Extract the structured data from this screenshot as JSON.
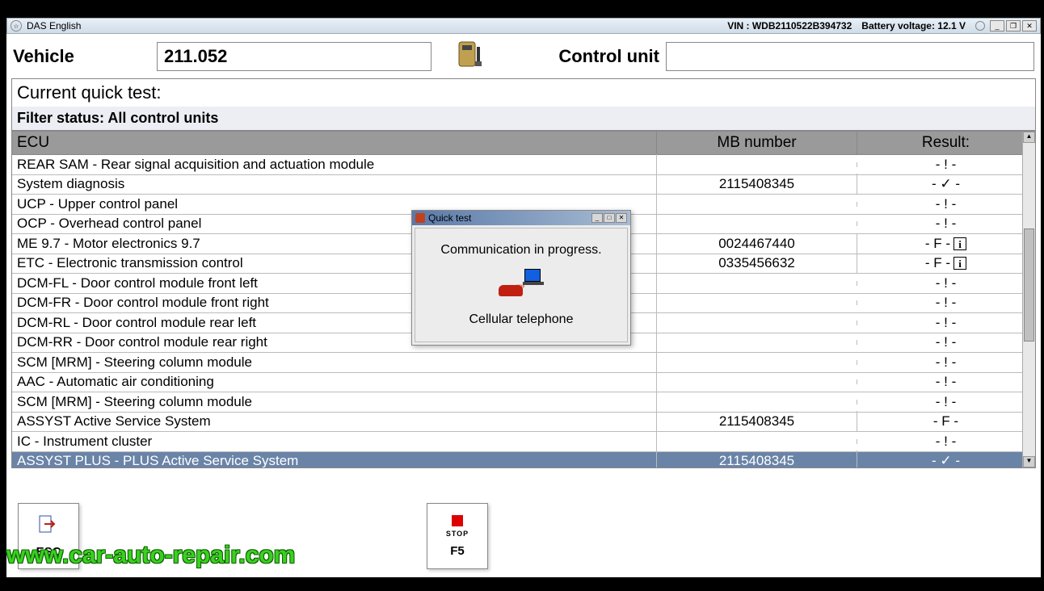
{
  "titlebar": {
    "app_name": "DAS English",
    "vin_label": "VIN : WDB2110522B394732",
    "battery_label": "Battery voltage: 12.1 V"
  },
  "header": {
    "vehicle_label": "Vehicle",
    "vehicle_value": "211.052",
    "control_unit_label": "Control unit",
    "control_unit_value": ""
  },
  "section": {
    "title": "Current quick test:",
    "filter": "Filter status: All control units"
  },
  "table": {
    "col_ecu": "ECU",
    "col_mb": "MB number",
    "col_result": "Result:",
    "rows": [
      {
        "ecu": "REAR SAM - Rear signal acquisition and actuation module",
        "mb": "",
        "result": "- ! -",
        "info": false,
        "selected": false
      },
      {
        "ecu": "System diagnosis",
        "mb": "2115408345",
        "result": "- ✓ -",
        "info": false,
        "selected": false
      },
      {
        "ecu": "UCP - Upper control panel",
        "mb": "",
        "result": "- ! -",
        "info": false,
        "selected": false
      },
      {
        "ecu": "OCP - Overhead control panel",
        "mb": "",
        "result": "- ! -",
        "info": false,
        "selected": false
      },
      {
        "ecu": "ME 9.7 - Motor electronics 9.7",
        "mb": "0024467440",
        "result": "- F -",
        "info": true,
        "selected": false
      },
      {
        "ecu": "ETC - Electronic transmission control",
        "mb": "0335456632",
        "result": "- F -",
        "info": true,
        "selected": false
      },
      {
        "ecu": "DCM-FL - Door control module front left",
        "mb": "",
        "result": "- ! -",
        "info": false,
        "selected": false
      },
      {
        "ecu": "DCM-FR - Door control module front right",
        "mb": "",
        "result": "- ! -",
        "info": false,
        "selected": false
      },
      {
        "ecu": "DCM-RL - Door control module rear left",
        "mb": "",
        "result": "- ! -",
        "info": false,
        "selected": false
      },
      {
        "ecu": "DCM-RR - Door control module rear right",
        "mb": "",
        "result": "- ! -",
        "info": false,
        "selected": false
      },
      {
        "ecu": "SCM [MRM] - Steering column module",
        "mb": "",
        "result": "- ! -",
        "info": false,
        "selected": false
      },
      {
        "ecu": "AAC - Automatic air conditioning",
        "mb": "",
        "result": "- ! -",
        "info": false,
        "selected": false
      },
      {
        "ecu": "SCM [MRM] - Steering column module",
        "mb": "",
        "result": "- ! -",
        "info": false,
        "selected": false
      },
      {
        "ecu": "ASSYST Active Service System",
        "mb": "2115408345",
        "result": "- F -",
        "info": false,
        "selected": false
      },
      {
        "ecu": "IC - Instrument cluster",
        "mb": "",
        "result": "- ! -",
        "info": false,
        "selected": false
      },
      {
        "ecu": "ASSYST PLUS - PLUS Active Service System",
        "mb": "2115408345",
        "result": "- ✓ -",
        "info": false,
        "selected": true
      }
    ]
  },
  "footer": {
    "esc": "ESC",
    "f5": "F5",
    "stop": "STOP"
  },
  "dialog": {
    "title": "Quick test",
    "line1": "Communication in progress.",
    "line2": "Cellular telephone"
  },
  "watermark": "www.car-auto-repair.com"
}
